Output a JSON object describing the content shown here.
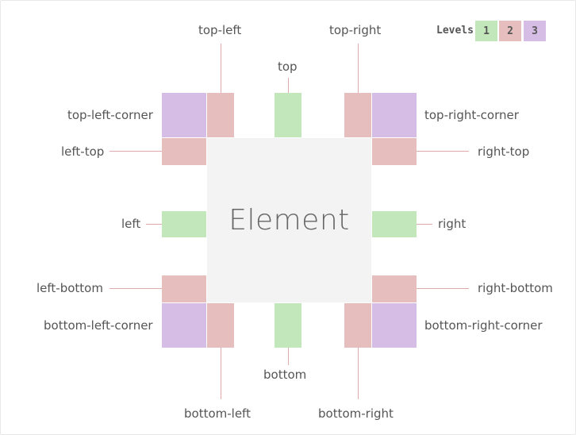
{
  "element_label": "Element",
  "legend": {
    "title": "Levels",
    "levels": [
      {
        "label": "1",
        "color": "#c1e7bb"
      },
      {
        "label": "2",
        "color": "#e6bebe"
      },
      {
        "label": "3",
        "color": "#d6bde5"
      }
    ]
  },
  "positions": {
    "top_left": "top-left",
    "top": "top",
    "top_right": "top-right",
    "top_left_corner": "top-left-corner",
    "top_right_corner": "top-right-corner",
    "left_top": "left-top",
    "right_top": "right-top",
    "left": "left",
    "right": "right",
    "left_bottom": "left-bottom",
    "right_bottom": "right-bottom",
    "bottom_left_corner": "bottom-left-corner",
    "bottom_right_corner": "bottom-right-corner",
    "bottom": "bottom",
    "bottom_left": "bottom-left",
    "bottom_right": "bottom-right"
  }
}
